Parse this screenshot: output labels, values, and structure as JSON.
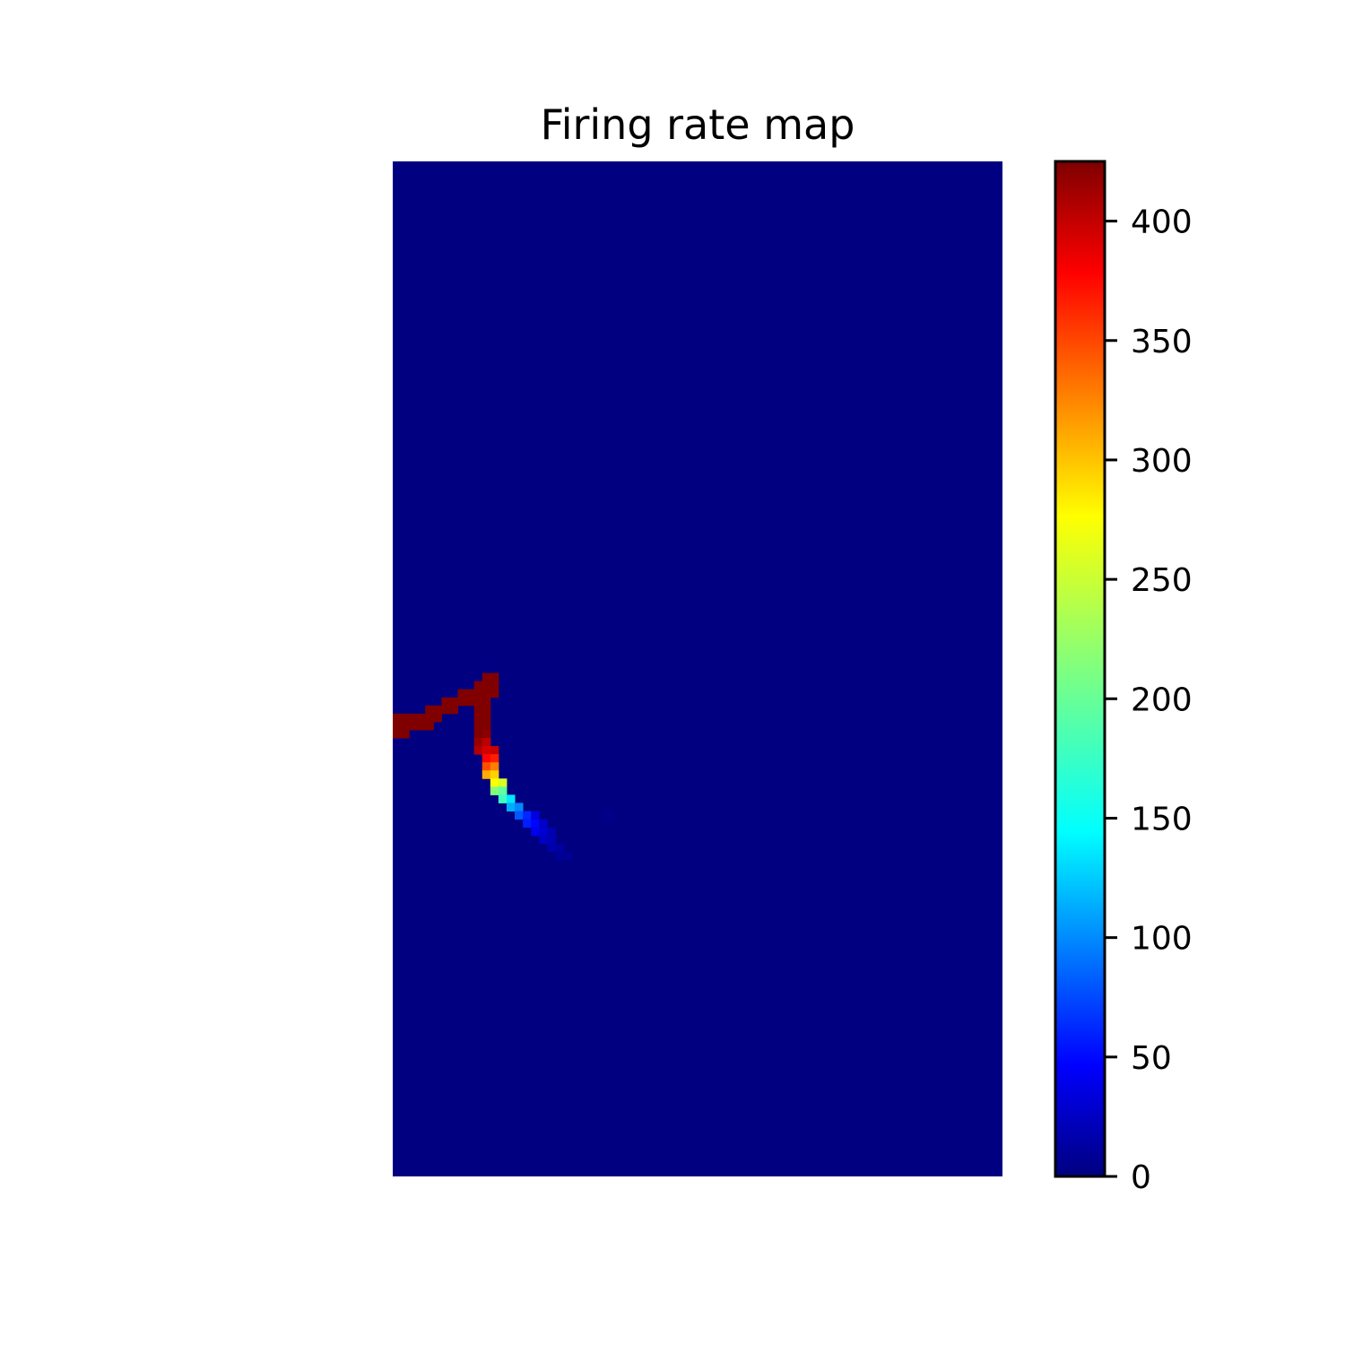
{
  "chart_data": {
    "type": "heatmap",
    "title": "Firing rate map",
    "xlabel": "",
    "ylabel": "",
    "axes_visible": false,
    "grid": false,
    "grid_size": {
      "cols": 75,
      "rows": 125
    },
    "background_value": 0,
    "colormap": "jet",
    "colorbar": {
      "vmin": 0,
      "vmax": 425,
      "ticks": [
        0,
        50,
        100,
        150,
        200,
        250,
        300,
        350,
        400
      ],
      "tick_labels": [
        "0",
        "50",
        "100",
        "150",
        "200",
        "250",
        "300",
        "350",
        "400"
      ],
      "placement": "right"
    },
    "cells": [
      {
        "col": 0,
        "row": 68,
        "value": 425
      },
      {
        "col": 1,
        "row": 68,
        "value": 425
      },
      {
        "col": 2,
        "row": 68,
        "value": 425
      },
      {
        "col": 3,
        "row": 68,
        "value": 425
      },
      {
        "col": 0,
        "row": 69,
        "value": 425
      },
      {
        "col": 1,
        "row": 69,
        "value": 425
      },
      {
        "col": 2,
        "row": 69,
        "value": 425
      },
      {
        "col": 3,
        "row": 69,
        "value": 425
      },
      {
        "col": 4,
        "row": 69,
        "value": 425
      },
      {
        "col": 0,
        "row": 70,
        "value": 425
      },
      {
        "col": 1,
        "row": 70,
        "value": 425
      },
      {
        "col": 4,
        "row": 67,
        "value": 425
      },
      {
        "col": 5,
        "row": 67,
        "value": 425
      },
      {
        "col": 6,
        "row": 67,
        "value": 425
      },
      {
        "col": 5,
        "row": 68,
        "value": 425
      },
      {
        "col": 4,
        "row": 68,
        "value": 425
      },
      {
        "col": 6,
        "row": 66,
        "value": 425
      },
      {
        "col": 7,
        "row": 66,
        "value": 425
      },
      {
        "col": 8,
        "row": 66,
        "value": 425
      },
      {
        "col": 7,
        "row": 67,
        "value": 425
      },
      {
        "col": 8,
        "row": 65,
        "value": 425
      },
      {
        "col": 9,
        "row": 65,
        "value": 425
      },
      {
        "col": 10,
        "row": 65,
        "value": 425
      },
      {
        "col": 9,
        "row": 66,
        "value": 425
      },
      {
        "col": 10,
        "row": 64,
        "value": 425
      },
      {
        "col": 11,
        "row": 64,
        "value": 425
      },
      {
        "col": 11,
        "row": 63,
        "value": 425
      },
      {
        "col": 12,
        "row": 63,
        "value": 425
      },
      {
        "col": 11,
        "row": 65,
        "value": 425
      },
      {
        "col": 12,
        "row": 64,
        "value": 425
      },
      {
        "col": 12,
        "row": 65,
        "value": 425
      },
      {
        "col": 10,
        "row": 66,
        "value": 425
      },
      {
        "col": 10,
        "row": 67,
        "value": 425
      },
      {
        "col": 11,
        "row": 66,
        "value": 425
      },
      {
        "col": 10,
        "row": 68,
        "value": 425
      },
      {
        "col": 11,
        "row": 67,
        "value": 425
      },
      {
        "col": 10,
        "row": 69,
        "value": 425
      },
      {
        "col": 11,
        "row": 68,
        "value": 425
      },
      {
        "col": 10,
        "row": 70,
        "value": 425
      },
      {
        "col": 11,
        "row": 69,
        "value": 425
      },
      {
        "col": 10,
        "row": 71,
        "value": 415
      },
      {
        "col": 11,
        "row": 70,
        "value": 420
      },
      {
        "col": 10,
        "row": 72,
        "value": 405
      },
      {
        "col": 11,
        "row": 71,
        "value": 400
      },
      {
        "col": 12,
        "row": 72,
        "value": 395
      },
      {
        "col": 11,
        "row": 72,
        "value": 390
      },
      {
        "col": 11,
        "row": 73,
        "value": 370
      },
      {
        "col": 12,
        "row": 73,
        "value": 360
      },
      {
        "col": 11,
        "row": 74,
        "value": 340
      },
      {
        "col": 12,
        "row": 74,
        "value": 320
      },
      {
        "col": 11,
        "row": 75,
        "value": 300
      },
      {
        "col": 12,
        "row": 75,
        "value": 285
      },
      {
        "col": 12,
        "row": 76,
        "value": 265
      },
      {
        "col": 13,
        "row": 76,
        "value": 250
      },
      {
        "col": 12,
        "row": 77,
        "value": 215
      },
      {
        "col": 13,
        "row": 77,
        "value": 200
      },
      {
        "col": 13,
        "row": 78,
        "value": 185
      },
      {
        "col": 14,
        "row": 78,
        "value": 150
      },
      {
        "col": 14,
        "row": 79,
        "value": 125
      },
      {
        "col": 15,
        "row": 79,
        "value": 110
      },
      {
        "col": 15,
        "row": 80,
        "value": 90
      },
      {
        "col": 16,
        "row": 80,
        "value": 70
      },
      {
        "col": 16,
        "row": 81,
        "value": 65
      },
      {
        "col": 17,
        "row": 81,
        "value": 55
      },
      {
        "col": 17,
        "row": 82,
        "value": 45
      },
      {
        "col": 18,
        "row": 82,
        "value": 35
      },
      {
        "col": 18,
        "row": 83,
        "value": 28
      },
      {
        "col": 19,
        "row": 83,
        "value": 22
      },
      {
        "col": 19,
        "row": 84,
        "value": 18
      },
      {
        "col": 20,
        "row": 84,
        "value": 14
      },
      {
        "col": 20,
        "row": 85,
        "value": 10
      },
      {
        "col": 21,
        "row": 85,
        "value": 8
      },
      {
        "col": 17,
        "row": 80,
        "value": 40
      },
      {
        "col": 18,
        "row": 81,
        "value": 30
      },
      {
        "col": 19,
        "row": 82,
        "value": 20
      },
      {
        "col": 26,
        "row": 80,
        "value": 6
      }
    ]
  }
}
